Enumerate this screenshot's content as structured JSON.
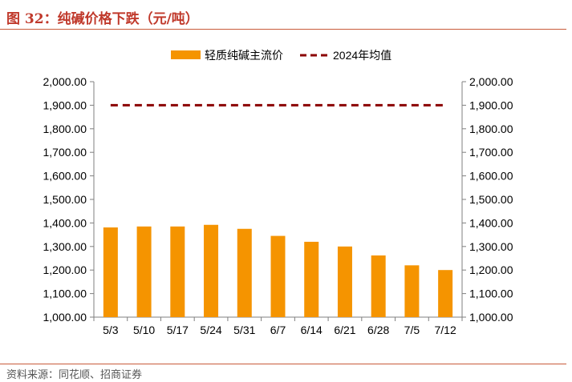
{
  "header": {
    "title": "图 32：纯碱价格下跌（元/吨）"
  },
  "footer": {
    "source": "资料来源：同花顺、招商证券"
  },
  "colors": {
    "bar": "#f59400",
    "line": "#8b0000",
    "title": "#c0392b",
    "rule": "#c85a3a"
  },
  "chart_data": {
    "type": "bar",
    "title": "",
    "categories": [
      "5/3",
      "5/10",
      "5/17",
      "5/24",
      "5/31",
      "6/7",
      "6/14",
      "6/21",
      "6/28",
      "7/5",
      "7/12"
    ],
    "series": [
      {
        "name": "轻质纯碱主流价",
        "kind": "bar",
        "axis": "left",
        "values": [
          1381,
          1385,
          1385,
          1392,
          1375,
          1345,
          1320,
          1300,
          1262,
          1220,
          1200
        ]
      },
      {
        "name": "2024年均值",
        "kind": "line",
        "style": "dashed",
        "axis": "right",
        "values": [
          1900,
          1900,
          1900,
          1900,
          1900,
          1900,
          1900,
          1900,
          1900,
          1900,
          1900
        ]
      }
    ],
    "ylim": [
      1000,
      2000
    ],
    "yticks": [
      "1,000.00",
      "1,100.00",
      "1,200.00",
      "1,300.00",
      "1,400.00",
      "1,500.00",
      "1,600.00",
      "1,700.00",
      "1,800.00",
      "1,900.00",
      "2,000.00"
    ],
    "y2lim": [
      1000,
      2000
    ],
    "legend": "top-center",
    "xlabel": "",
    "ylabel": ""
  }
}
